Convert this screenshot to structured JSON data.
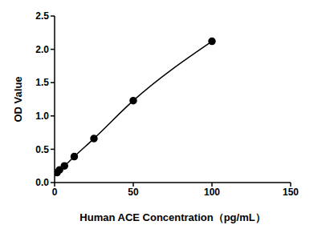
{
  "chart_data": {
    "type": "line",
    "x_label": "Human ACE Concentration（pg/mL）",
    "y_label": "OD Value",
    "x": [
      1.5625,
      3.125,
      6.25,
      12.5,
      25,
      50,
      100
    ],
    "values": [
      0.15,
      0.19,
      0.25,
      0.39,
      0.66,
      1.23,
      2.12
    ],
    "color": "#000000",
    "marker": "circle",
    "line_style": "solid",
    "xlim": [
      0,
      150
    ],
    "xticks": [
      0,
      50,
      100,
      150
    ],
    "ylim": [
      0,
      2.5
    ],
    "yticks": [
      {
        "value": 0,
        "label": "0.0"
      },
      {
        "value": 0.5,
        "label": "0.5"
      },
      {
        "value": 1,
        "label": "1.0"
      },
      {
        "value": 1.5,
        "label": "1.5"
      },
      {
        "value": 2,
        "label": "2.0"
      },
      {
        "value": 2.5,
        "label": "2.5"
      }
    ],
    "grid": false
  }
}
